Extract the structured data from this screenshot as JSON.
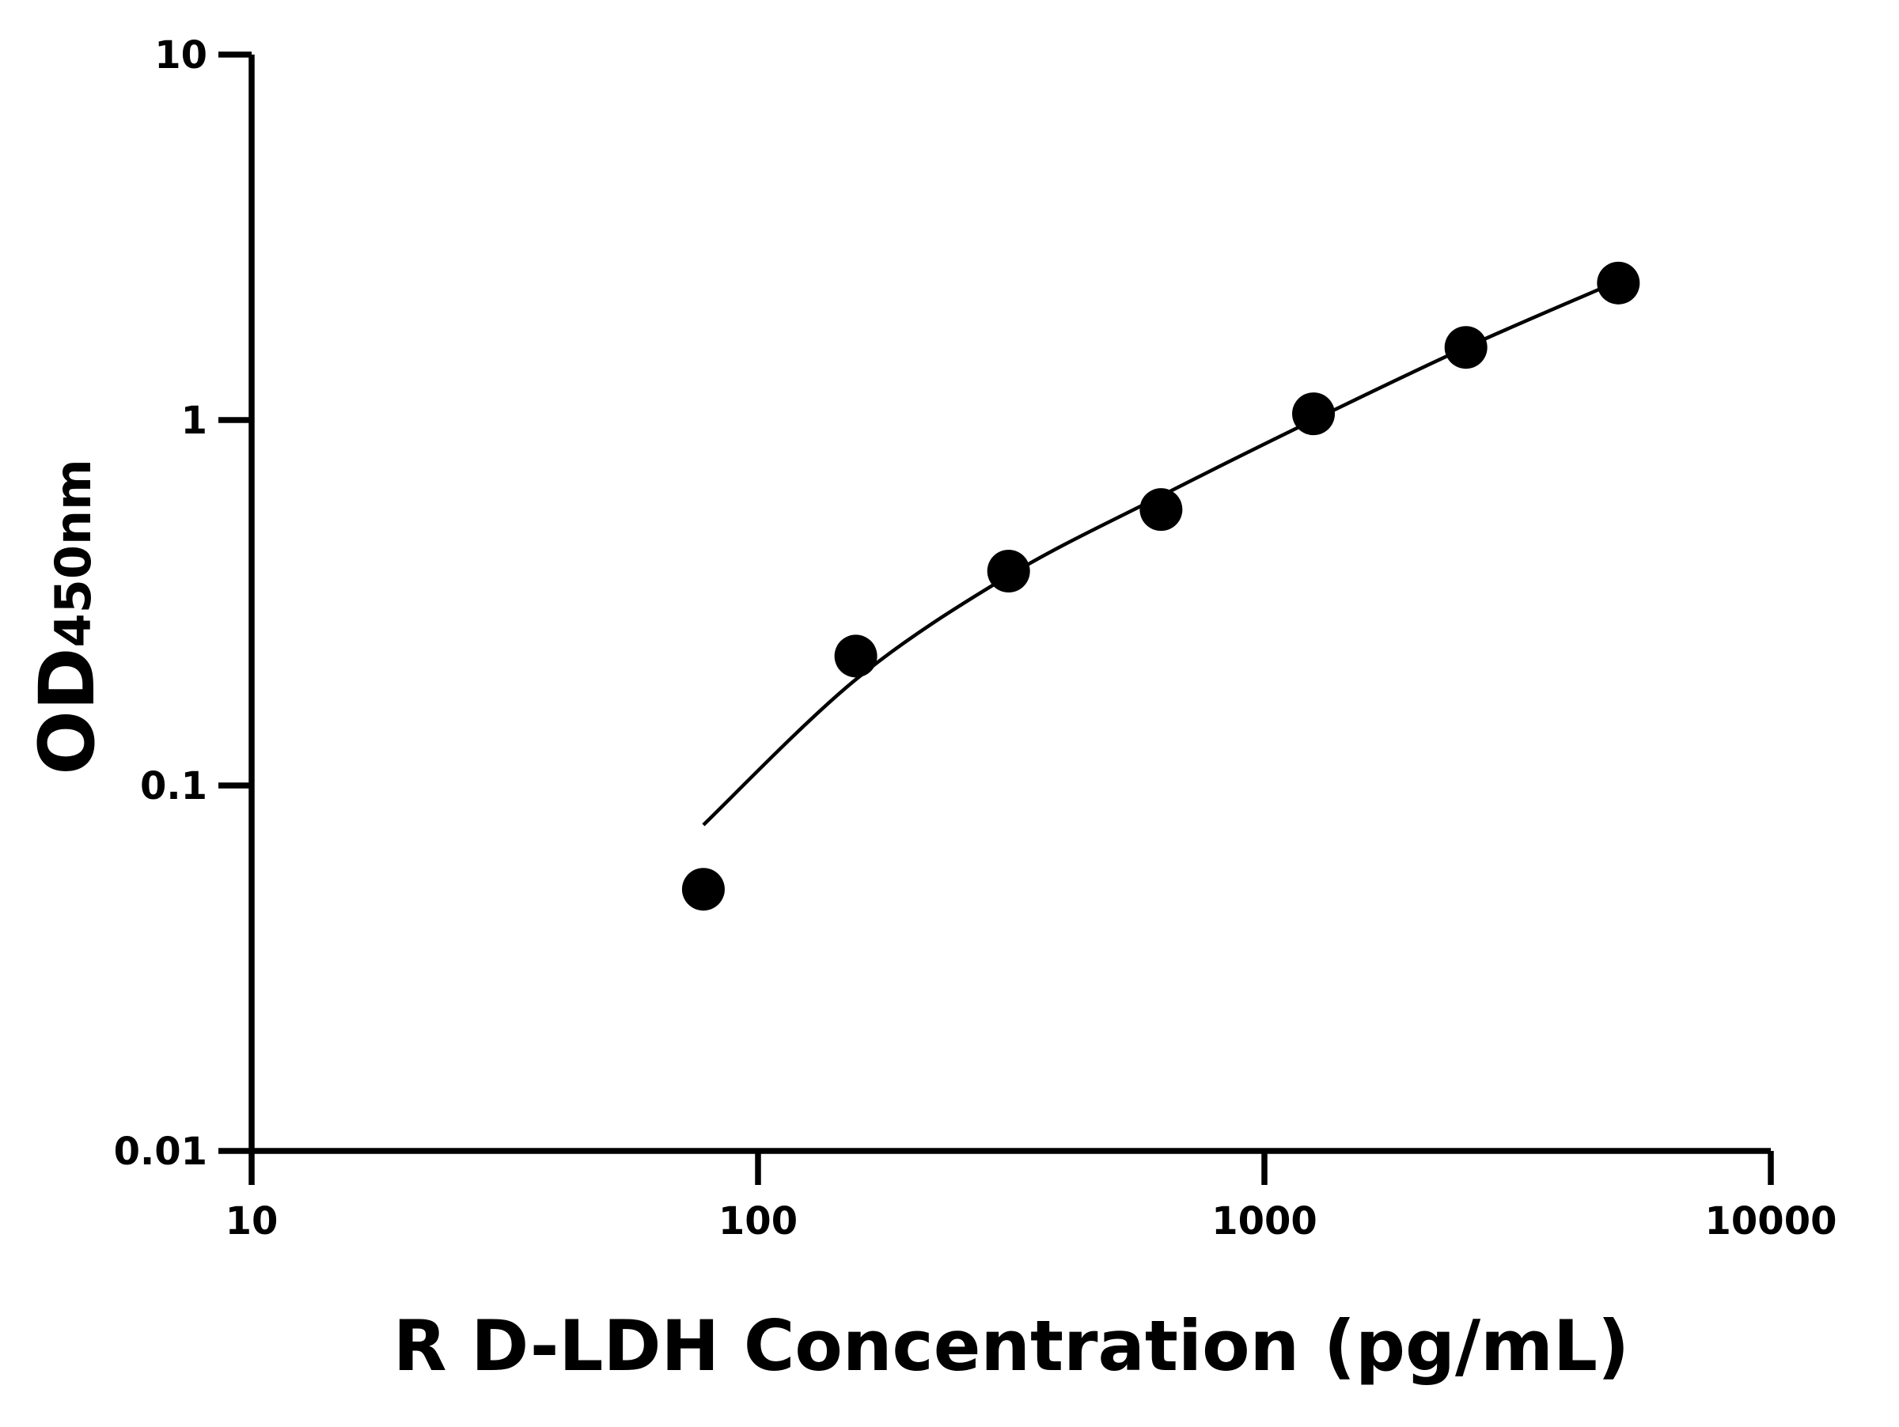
{
  "chart_data": {
    "type": "scatter",
    "title": "",
    "xlabel": "R D-LDH Concentration (pg/mL)",
    "ylabel": "OD",
    "ylabel_subscript": "450nm",
    "x_scale": "log",
    "y_scale": "log",
    "xlim": [
      10,
      10000
    ],
    "ylim": [
      0.01,
      10
    ],
    "x_ticks": [
      10,
      100,
      1000,
      10000
    ],
    "x_tick_labels": [
      "10",
      "100",
      "1000",
      "10000"
    ],
    "y_ticks": [
      0.01,
      0.1,
      1,
      10
    ],
    "y_tick_labels": [
      "0.01",
      "0.1",
      "1",
      "10"
    ],
    "grid": false,
    "series": [
      {
        "type": "scatter",
        "x": [
          78,
          156,
          312.5,
          625,
          1250,
          2500,
          5000
        ],
        "y": [
          0.052,
          0.226,
          0.386,
          0.569,
          1.04,
          1.58,
          2.37
        ]
      },
      {
        "type": "line",
        "x": [
          78,
          156,
          312.5,
          625,
          1250,
          2500,
          5000
        ],
        "y": [
          0.078,
          0.195,
          0.375,
          0.62,
          1.0,
          1.58,
          2.4
        ]
      }
    ],
    "colors": {
      "marker": "#000000",
      "line": "#000000",
      "axis": "#000000"
    }
  }
}
